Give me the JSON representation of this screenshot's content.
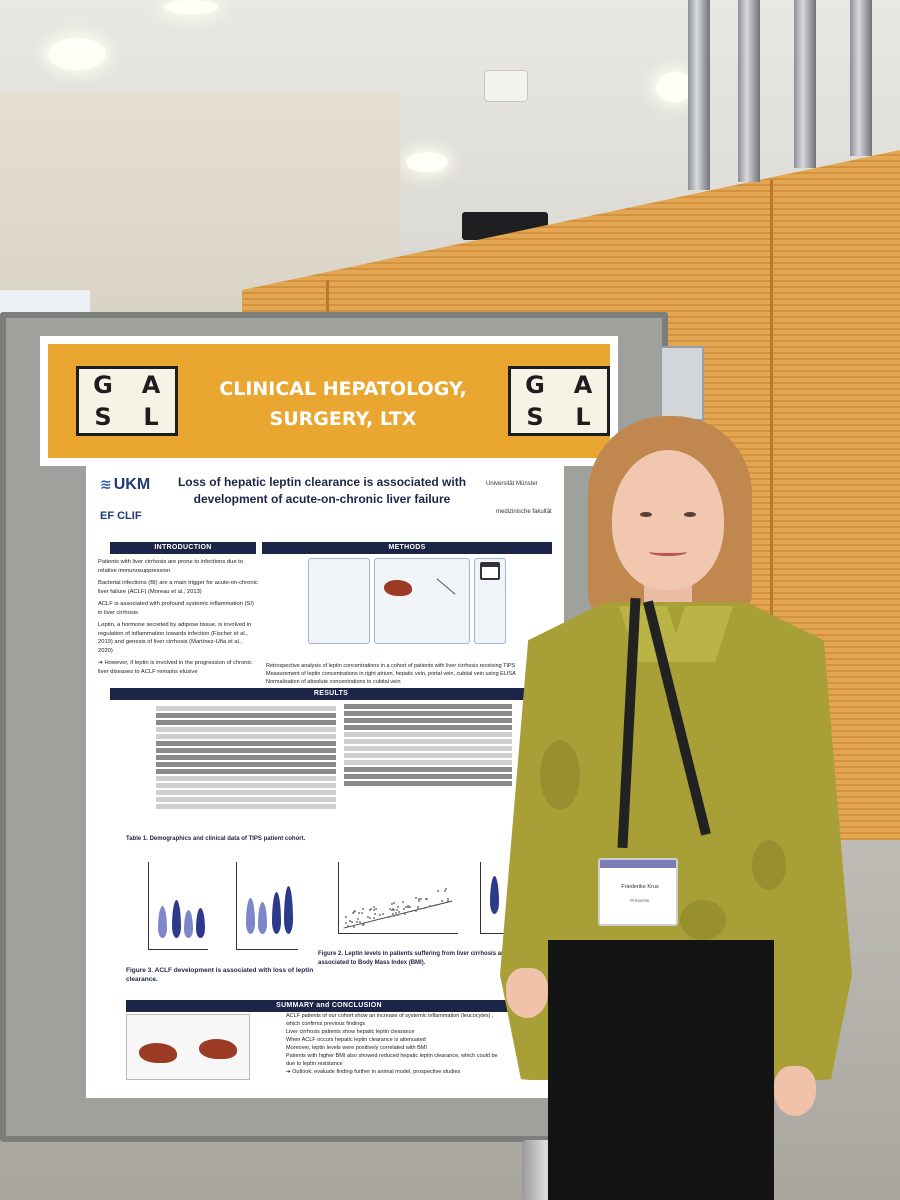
{
  "banner": {
    "logo_letters": [
      "G",
      "A",
      "S",
      "L"
    ],
    "title_line1": "CLINICAL HEPATOLOGY,",
    "title_line2": "SURGERY, LTX"
  },
  "poster": {
    "title": "Loss of hepatic leptin clearance is associated with development of acute-on-chronic liver failure",
    "logos": {
      "left_top": "UKM",
      "left_bottom": "EF CLIF",
      "right_top": "Universität Münster",
      "right_bottom": "medizinische fakultät"
    },
    "sections": {
      "introduction": "INTRODUCTION",
      "methods": "METHODS",
      "results": "RESULTS",
      "summary": "SUMMARY and CONCLUSION"
    },
    "intro_bullets": [
      "Patients with liver cirrhosis are prone to infections due to relative immunosuppression",
      "Bacterial infections (BI) are a main trigger for acute-on-chronic liver failure (ACLF) (Moreau et al., 2013)",
      "ACLF is associated with profound systemic inflammation (SI) in liver cirrhosis",
      "Leptin, a hormone secreted by adipose tissue, is involved in regulation of inflammation towards infection (Fischer et al., 2019) and genesis of liver cirrhosis (Martínez-Uña et al., 2020)",
      "➔ However, if leptin is involved in the progression of chronic liver diseases to ACLF remains elusive"
    ],
    "methods_bullets": [
      "Retrospective analysis of leptin concentrations in a cohort of patients with liver cirrhosis receiving TIPS",
      "Measurement of leptin concentrations in right atrium, hepatic vein, portal vein, cubital vein using ELISA",
      "Normalisation of absolute concentrations to cubital vein"
    ],
    "table_caption": "Table 1. Demographics and clinical data of TIPS patient cohort.",
    "figure3_caption": "Figure 3. ACLF development is associated with loss of leptin clearance.",
    "figure2_caption": "Figure 2. Leptin levels in patients suffering from liver cirrhosis are positively associated to Body Mass Index (BMI).",
    "summary_bullets": [
      "ACLF patients of our cohort show an increase of systemic inflammation (leucocytes) , which confirms previous findings",
      "Liver cirrhosis patients show hepatic leptin clearance",
      "When ACLF occurs hepatic leptin clearance is attenuated",
      "Moreover, leptin levels were positively correlated with BMI",
      "Patients with higher BMI also showed reduced hepatic leptin clearance, which could be due to leptin resistance",
      "➔ Outlook: evaluate finding further in animal model, prospective studies"
    ]
  },
  "badge": {
    "name": "Friederike Krus",
    "role": "Presenter"
  },
  "colors": {
    "banner_orange": "#e9a630",
    "poster_navy": "#1c2548",
    "wall_wood": "#e3a653",
    "shirt_olive": "#a8a037"
  }
}
